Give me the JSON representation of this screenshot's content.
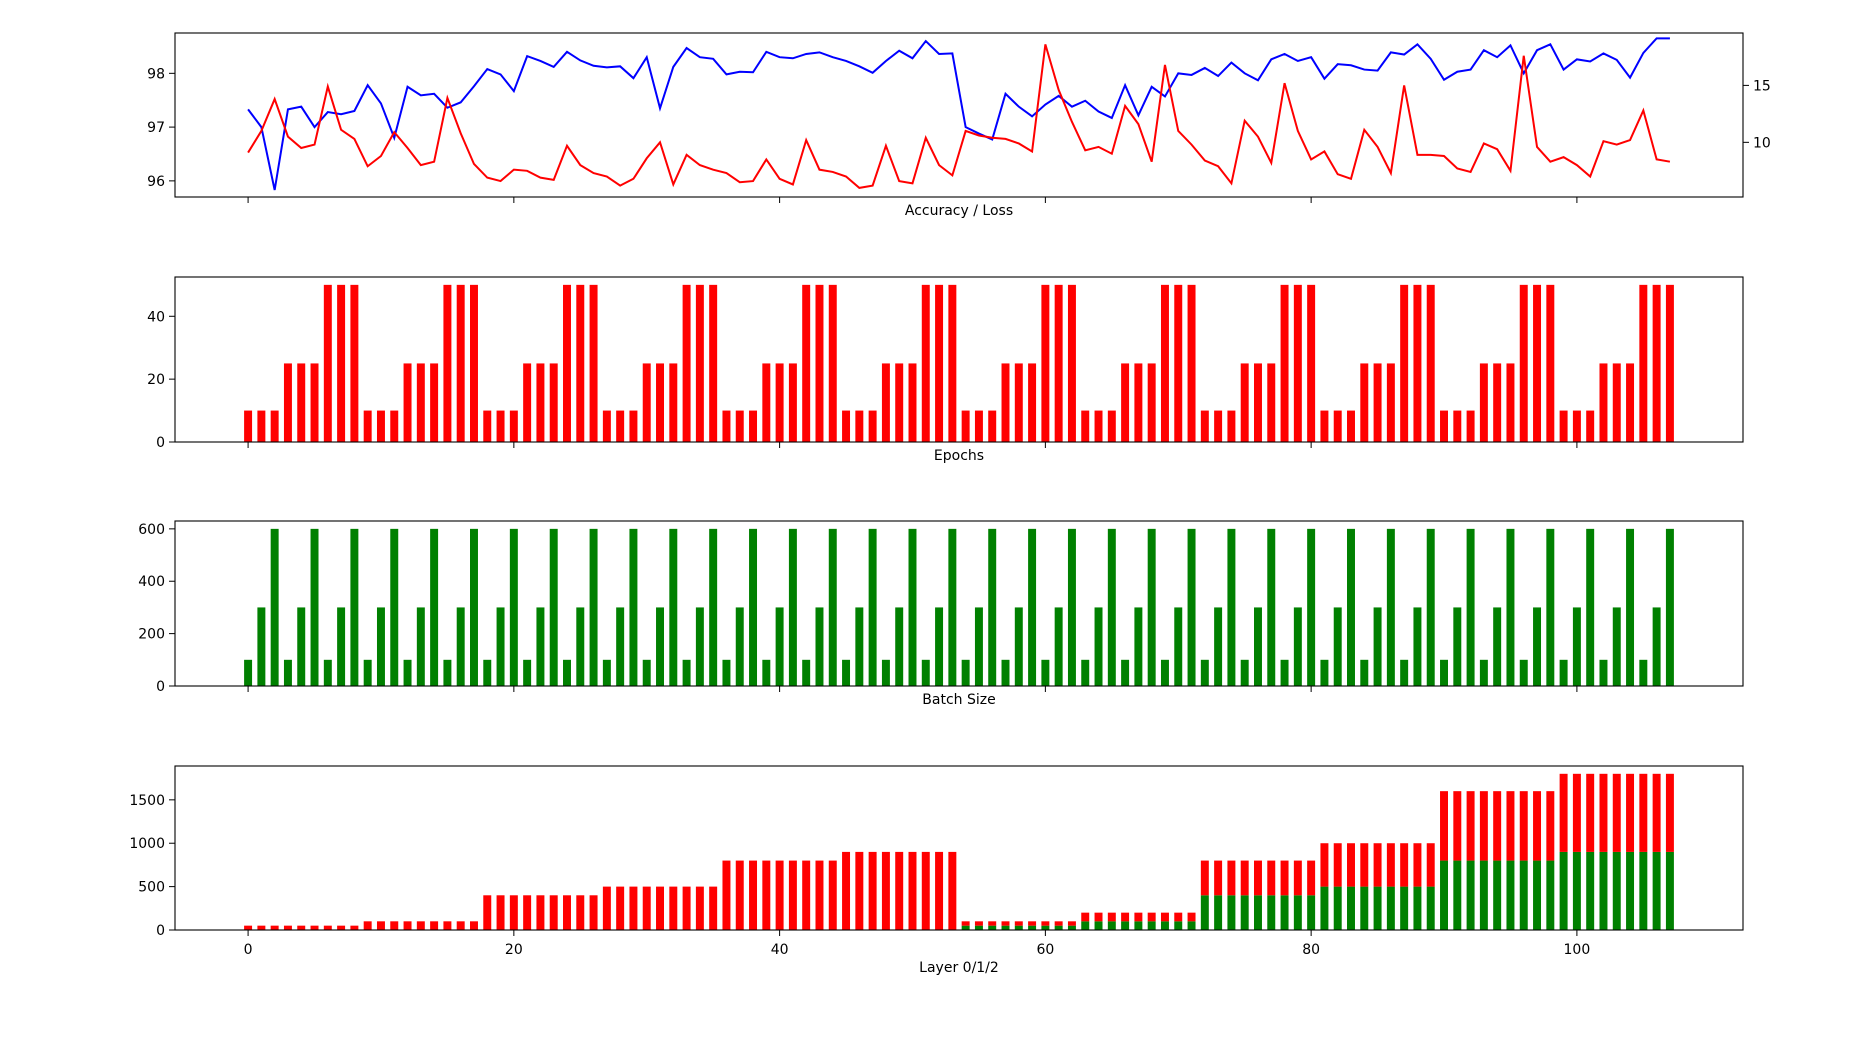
{
  "colors": {
    "accuracy": "#0000ff",
    "loss": "#ff0000",
    "epochs": "#ff0000",
    "batch": "#008000",
    "layer0": "#008000",
    "layer1": "#ff0000"
  },
  "chart_data": [
    {
      "type": "line",
      "title": "",
      "xlabel": "Accuracy / Loss",
      "ylabel": "",
      "xlim": [
        -5.5,
        112.5
      ],
      "ylim": [
        95.7,
        98.75
      ],
      "y2lim": [
        5.2,
        19.6
      ],
      "yticks": [
        96,
        97,
        98
      ],
      "yticklabels": [
        "96",
        "97",
        "98"
      ],
      "y2ticks": [
        10,
        15
      ],
      "y2ticklabels": [
        "10",
        "15"
      ],
      "show_xticklabels": false,
      "series": [
        {
          "color": "#0000ff",
          "axis": "left",
          "values": [
            97.33,
            97.0,
            95.83,
            97.33,
            97.38,
            97.0,
            97.28,
            97.24,
            97.3,
            97.78,
            97.44,
            96.8,
            97.75,
            97.59,
            97.62,
            97.36,
            97.46,
            97.76,
            98.08,
            97.98,
            97.67,
            98.32,
            98.23,
            98.12,
            98.4,
            98.24,
            98.14,
            98.11,
            98.13,
            97.91,
            98.3,
            97.35,
            98.12,
            98.47,
            98.3,
            98.27,
            97.98,
            98.03,
            98.02,
            98.4,
            98.3,
            98.28,
            98.36,
            98.39,
            98.3,
            98.23,
            98.13,
            98.01,
            98.23,
            98.42,
            98.28,
            98.6,
            98.36,
            98.37,
            97.0,
            96.88,
            96.77,
            97.62,
            97.38,
            97.2,
            97.42,
            97.58,
            97.38,
            97.49,
            97.29,
            97.17,
            97.78,
            97.22,
            97.75,
            97.57,
            98.0,
            97.97,
            98.1,
            97.95,
            98.2,
            98.0,
            97.87,
            98.26,
            98.36,
            98.23,
            98.3,
            97.9,
            98.17,
            98.15,
            98.07,
            98.05,
            98.39,
            98.35,
            98.54,
            98.27,
            97.88,
            98.03,
            98.07,
            98.43,
            98.3,
            98.52,
            98.0,
            98.43,
            98.54,
            98.07,
            98.26,
            98.22,
            98.37,
            98.25,
            97.92,
            98.38,
            98.65,
            98.65
          ]
        },
        {
          "color": "#ff0000",
          "axis": "right",
          "values": [
            9.1,
            11.0,
            13.8,
            10.5,
            9.5,
            9.8,
            14.9,
            11.1,
            10.3,
            7.9,
            8.8,
            10.9,
            9.5,
            8.0,
            8.3,
            13.9,
            10.8,
            8.1,
            6.9,
            6.6,
            7.6,
            7.5,
            6.9,
            6.7,
            9.7,
            8.0,
            7.3,
            7.0,
            6.2,
            6.8,
            8.6,
            10.0,
            6.3,
            8.9,
            8.0,
            7.6,
            7.3,
            6.5,
            6.6,
            8.5,
            6.8,
            6.3,
            10.2,
            7.6,
            7.4,
            7.0,
            6.0,
            6.2,
            9.7,
            6.6,
            6.4,
            10.4,
            8.0,
            7.1,
            11.0,
            10.6,
            10.4,
            10.3,
            9.9,
            9.2,
            18.6,
            14.6,
            11.8,
            9.3,
            9.6,
            9.0,
            13.2,
            11.6,
            8.3,
            16.8,
            11.0,
            9.8,
            8.4,
            7.9,
            6.4,
            11.9,
            10.5,
            8.2,
            15.2,
            11.0,
            8.5,
            9.2,
            7.2,
            6.8,
            11.1,
            9.6,
            7.3,
            15.0,
            8.9,
            8.9,
            8.8,
            7.7,
            7.4,
            9.9,
            9.4,
            7.5,
            17.6,
            9.6,
            8.3,
            8.7,
            8.0,
            7.0,
            10.1,
            9.8,
            10.2,
            12.8,
            8.5,
            8.3
          ]
        }
      ]
    },
    {
      "type": "bar",
      "title": "",
      "xlabel": "Epochs",
      "ylabel": "",
      "xlim": [
        -5.5,
        112.5
      ],
      "ylim": [
        0,
        52.5
      ],
      "yticks": [
        0,
        20,
        40
      ],
      "yticklabels": [
        "0",
        "20",
        "40"
      ],
      "show_xticklabels": false,
      "x": [
        0,
        1,
        2,
        3,
        4,
        5,
        6,
        7,
        8,
        9,
        10,
        11,
        12,
        13,
        14,
        15,
        16,
        17,
        18,
        19,
        20,
        21,
        22,
        23,
        24,
        25,
        26,
        27,
        28,
        29,
        30,
        31,
        32,
        33,
        34,
        35,
        36,
        37,
        38,
        39,
        40,
        41,
        42,
        43,
        44,
        45,
        46,
        47,
        48,
        49,
        50,
        51,
        52,
        53,
        54,
        55,
        56,
        57,
        58,
        59,
        60,
        61,
        62,
        63,
        64,
        65,
        66,
        67,
        68,
        69,
        70,
        71,
        72,
        73,
        74,
        75,
        76,
        77,
        78,
        79,
        80,
        81,
        82,
        83,
        84,
        85,
        86,
        87,
        88,
        89,
        90,
        91,
        92,
        93,
        94,
        95,
        96,
        97,
        98,
        99,
        100,
        101,
        102,
        103,
        104,
        105,
        106,
        107
      ],
      "series": [
        {
          "color": "#ff0000",
          "values": [
            10,
            10,
            10,
            25,
            25,
            25,
            50,
            50,
            50,
            10,
            10,
            10,
            25,
            25,
            25,
            50,
            50,
            50,
            10,
            10,
            10,
            25,
            25,
            25,
            50,
            50,
            50,
            10,
            10,
            10,
            25,
            25,
            25,
            50,
            50,
            50,
            10,
            10,
            10,
            25,
            25,
            25,
            50,
            50,
            50,
            10,
            10,
            10,
            25,
            25,
            25,
            50,
            50,
            50,
            10,
            10,
            10,
            25,
            25,
            25,
            50,
            50,
            50,
            10,
            10,
            10,
            25,
            25,
            25,
            50,
            50,
            50,
            10,
            10,
            10,
            25,
            25,
            25,
            50,
            50,
            50,
            10,
            10,
            10,
            25,
            25,
            25,
            50,
            50,
            50,
            10,
            10,
            10,
            25,
            25,
            25,
            50,
            50,
            50,
            10,
            10,
            10,
            25,
            25,
            25,
            50,
            50,
            50
          ]
        }
      ]
    },
    {
      "type": "bar",
      "title": "",
      "xlabel": "Batch Size",
      "ylabel": "",
      "xlim": [
        -5.5,
        112.5
      ],
      "ylim": [
        0,
        630
      ],
      "yticks": [
        0,
        200,
        400,
        600
      ],
      "yticklabels": [
        "0",
        "200",
        "400",
        "600"
      ],
      "show_xticklabels": false,
      "x": [
        0,
        1,
        2,
        3,
        4,
        5,
        6,
        7,
        8,
        9,
        10,
        11,
        12,
        13,
        14,
        15,
        16,
        17,
        18,
        19,
        20,
        21,
        22,
        23,
        24,
        25,
        26,
        27,
        28,
        29,
        30,
        31,
        32,
        33,
        34,
        35,
        36,
        37,
        38,
        39,
        40,
        41,
        42,
        43,
        44,
        45,
        46,
        47,
        48,
        49,
        50,
        51,
        52,
        53,
        54,
        55,
        56,
        57,
        58,
        59,
        60,
        61,
        62,
        63,
        64,
        65,
        66,
        67,
        68,
        69,
        70,
        71,
        72,
        73,
        74,
        75,
        76,
        77,
        78,
        79,
        80,
        81,
        82,
        83,
        84,
        85,
        86,
        87,
        88,
        89,
        90,
        91,
        92,
        93,
        94,
        95,
        96,
        97,
        98,
        99,
        100,
        101,
        102,
        103,
        104,
        105,
        106,
        107
      ],
      "series": [
        {
          "color": "#008000",
          "values": [
            100,
            300,
            600,
            100,
            300,
            600,
            100,
            300,
            600,
            100,
            300,
            600,
            100,
            300,
            600,
            100,
            300,
            600,
            100,
            300,
            600,
            100,
            300,
            600,
            100,
            300,
            600,
            100,
            300,
            600,
            100,
            300,
            600,
            100,
            300,
            600,
            100,
            300,
            600,
            100,
            300,
            600,
            100,
            300,
            600,
            100,
            300,
            600,
            100,
            300,
            600,
            100,
            300,
            600,
            100,
            300,
            600,
            100,
            300,
            600,
            100,
            300,
            600,
            100,
            300,
            600,
            100,
            300,
            600,
            100,
            300,
            600,
            100,
            300,
            600,
            100,
            300,
            600,
            100,
            300,
            600,
            100,
            300,
            600,
            100,
            300,
            600,
            100,
            300,
            600,
            100,
            300,
            600,
            100,
            300,
            600,
            100,
            300,
            600,
            100,
            300,
            600,
            100,
            300,
            600,
            100,
            300,
            600
          ]
        }
      ]
    },
    {
      "type": "bar",
      "stacked": true,
      "title": "",
      "xlabel": "Layer 0/1/2",
      "ylabel": "",
      "xlim": [
        -5.5,
        112.5
      ],
      "ylim": [
        0,
        1890
      ],
      "yticks": [
        0,
        500,
        1000,
        1500
      ],
      "yticklabels": [
        "0",
        "500",
        "1000",
        "1500"
      ],
      "xticks": [
        0,
        20,
        40,
        60,
        80,
        100
      ],
      "xticklabels": [
        "0",
        "20",
        "40",
        "60",
        "80",
        "100"
      ],
      "x": [
        0,
        1,
        2,
        3,
        4,
        5,
        6,
        7,
        8,
        9,
        10,
        11,
        12,
        13,
        14,
        15,
        16,
        17,
        18,
        19,
        20,
        21,
        22,
        23,
        24,
        25,
        26,
        27,
        28,
        29,
        30,
        31,
        32,
        33,
        34,
        35,
        36,
        37,
        38,
        39,
        40,
        41,
        42,
        43,
        44,
        45,
        46,
        47,
        48,
        49,
        50,
        51,
        52,
        53,
        54,
        55,
        56,
        57,
        58,
        59,
        60,
        61,
        62,
        63,
        64,
        65,
        66,
        67,
        68,
        69,
        70,
        71,
        72,
        73,
        74,
        75,
        76,
        77,
        78,
        79,
        80,
        81,
        82,
        83,
        84,
        85,
        86,
        87,
        88,
        89,
        90,
        91,
        92,
        93,
        94,
        95,
        96,
        97,
        98,
        99,
        100,
        101,
        102,
        103,
        104,
        105,
        106,
        107
      ],
      "series": [
        {
          "color": "#008000",
          "values": [
            0,
            0,
            0,
            0,
            0,
            0,
            0,
            0,
            0,
            0,
            0,
            0,
            0,
            0,
            0,
            0,
            0,
            0,
            0,
            0,
            0,
            0,
            0,
            0,
            0,
            0,
            0,
            0,
            0,
            0,
            0,
            0,
            0,
            0,
            0,
            0,
            0,
            0,
            0,
            0,
            0,
            0,
            0,
            0,
            0,
            0,
            0,
            0,
            0,
            0,
            0,
            0,
            0,
            0,
            50,
            50,
            50,
            50,
            50,
            50,
            50,
            50,
            50,
            100,
            100,
            100,
            100,
            100,
            100,
            100,
            100,
            100,
            400,
            400,
            400,
            400,
            400,
            400,
            400,
            400,
            400,
            500,
            500,
            500,
            500,
            500,
            500,
            500,
            500,
            500,
            800,
            800,
            800,
            800,
            800,
            800,
            800,
            800,
            800,
            900,
            900,
            900,
            900,
            900,
            900,
            900,
            900,
            900
          ]
        },
        {
          "color": "#ff0000",
          "values": [
            50,
            50,
            50,
            50,
            50,
            50,
            50,
            50,
            50,
            100,
            100,
            100,
            100,
            100,
            100,
            100,
            100,
            100,
            400,
            400,
            400,
            400,
            400,
            400,
            400,
            400,
            400,
            500,
            500,
            500,
            500,
            500,
            500,
            500,
            500,
            500,
            800,
            800,
            800,
            800,
            800,
            800,
            800,
            800,
            800,
            900,
            900,
            900,
            900,
            900,
            900,
            900,
            900,
            900,
            50,
            50,
            50,
            50,
            50,
            50,
            50,
            50,
            50,
            100,
            100,
            100,
            100,
            100,
            100,
            100,
            100,
            100,
            400,
            400,
            400,
            400,
            400,
            400,
            400,
            400,
            400,
            500,
            500,
            500,
            500,
            500,
            500,
            500,
            500,
            500,
            800,
            800,
            800,
            800,
            800,
            800,
            800,
            800,
            800,
            900,
            900,
            900,
            900,
            900,
            900,
            900,
            900,
            900
          ]
        }
      ]
    }
  ]
}
